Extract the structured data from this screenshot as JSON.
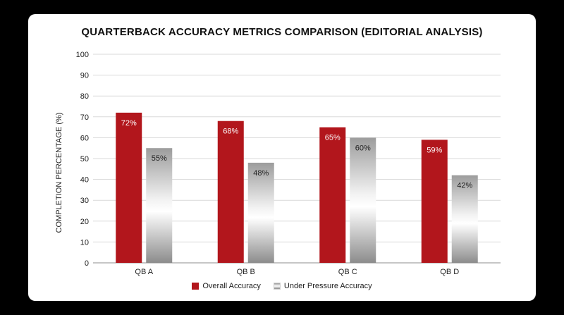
{
  "chart_data": {
    "type": "bar",
    "title": "QUARTERBACK ACCURACY METRICS COMPARISON (EDITORIAL ANALYSIS)",
    "ylabel": "COMPLETION PERCENTAGE (%)",
    "xlabel": "",
    "ylim": [
      0,
      100
    ],
    "yticks": [
      0,
      10,
      20,
      30,
      40,
      50,
      60,
      70,
      80,
      90,
      100
    ],
    "categories": [
      "QB A",
      "QB B",
      "QB C",
      "QB D"
    ],
    "series": [
      {
        "name": "Overall Accuracy",
        "values": [
          72,
          68,
          65,
          59
        ],
        "labels": [
          "72%",
          "68%",
          "65%",
          "59%"
        ],
        "color": "#b2161c"
      },
      {
        "name": "Under Pressure Accuracy",
        "values": [
          55,
          48,
          60,
          42
        ],
        "labels": [
          "55%",
          "48%",
          "60%",
          "42%"
        ],
        "color": "#a8a8a8"
      }
    ],
    "grid": true,
    "legend_position": "bottom"
  }
}
